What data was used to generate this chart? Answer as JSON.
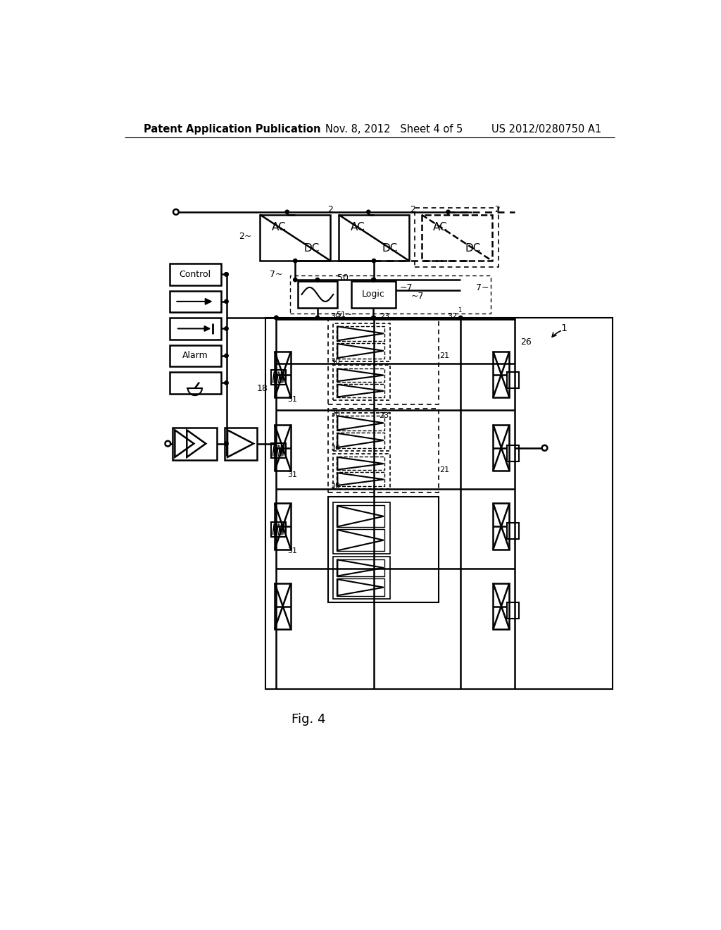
{
  "bg_color": "#ffffff",
  "header_left": "Patent Application Publication",
  "header_mid": "Nov. 8, 2012   Sheet 4 of 5",
  "header_right": "US 2012/0280750 A1",
  "caption": "Fig. 4",
  "header_fontsize": 10.5,
  "caption_fontsize": 13
}
